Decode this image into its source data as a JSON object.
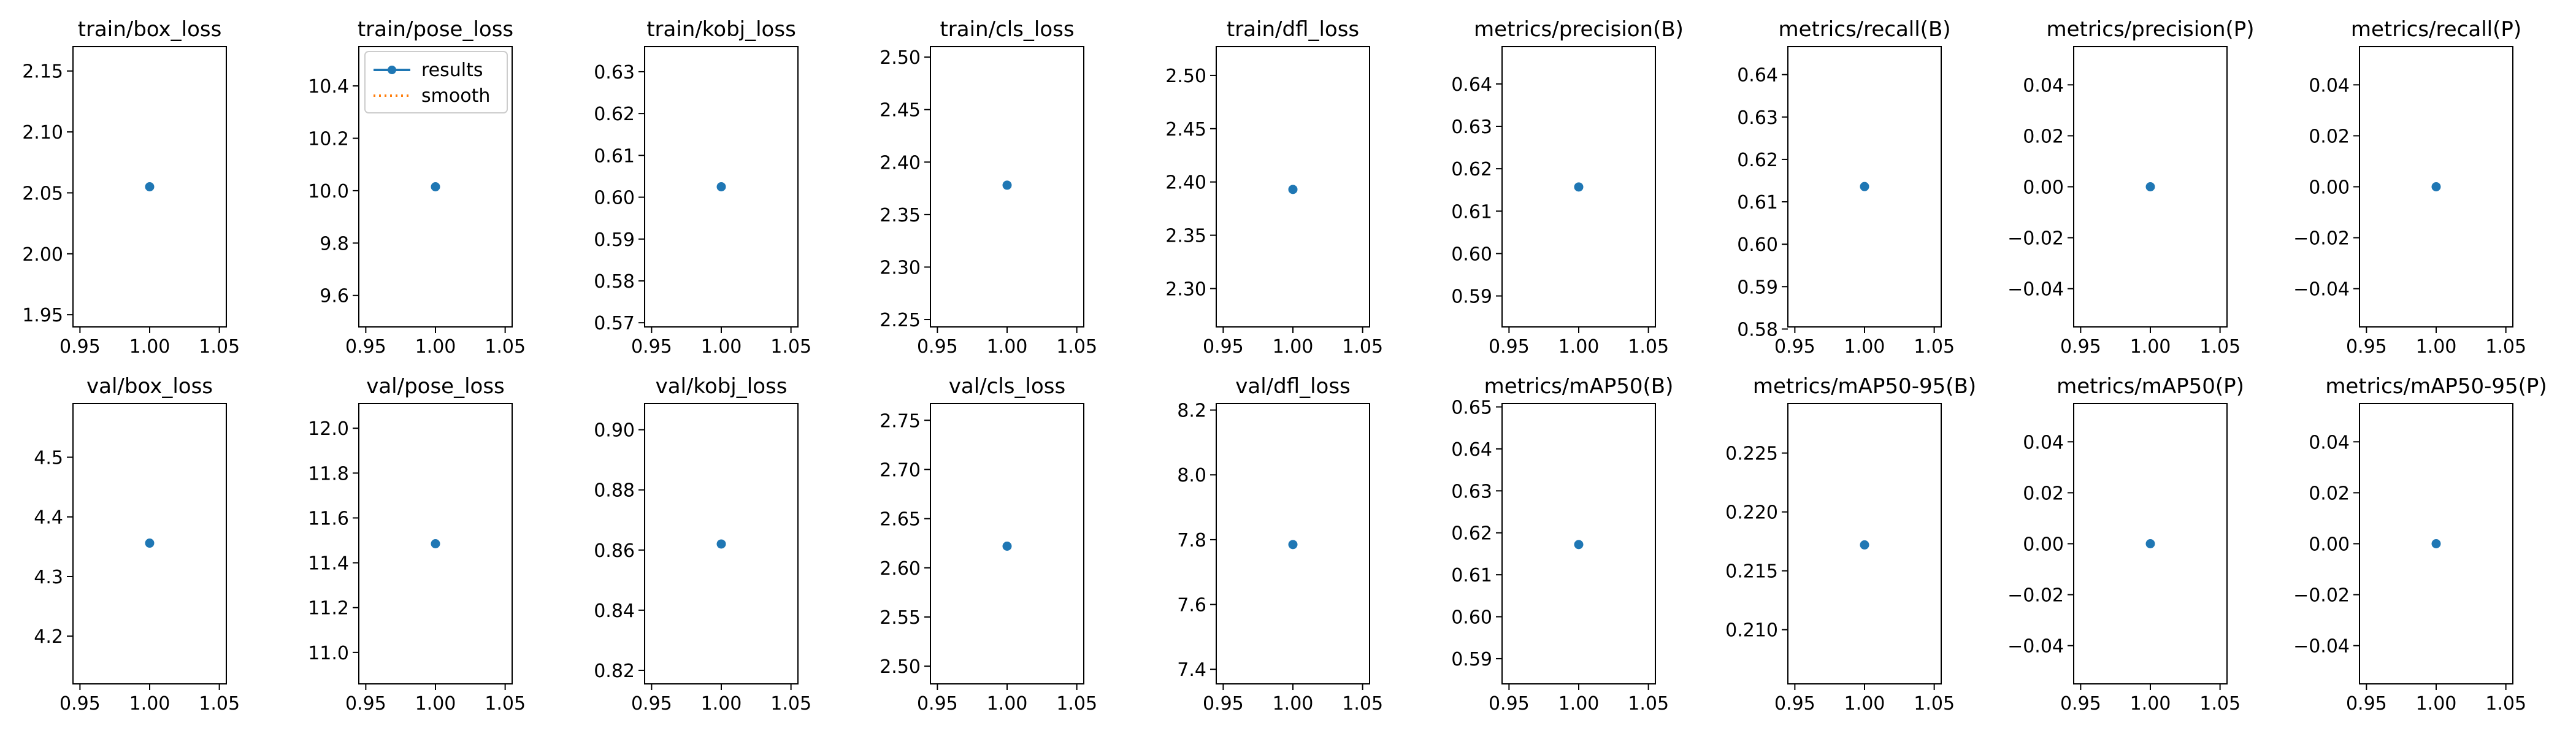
{
  "chart_data": [
    {
      "type": "scatter",
      "title": "train/box_loss",
      "x": [
        1.0
      ],
      "series": [
        {
          "name": "results",
          "values": [
            2.055
          ]
        }
      ],
      "xlim": [
        0.945,
        1.055
      ],
      "ylim": [
        1.94,
        2.17
      ],
      "xticks": [
        0.95,
        1.0,
        1.05
      ],
      "yticks": [
        1.95,
        2.0,
        2.05,
        2.1,
        2.15
      ],
      "xtick_labels": [
        "0.95",
        "1.00",
        "1.05"
      ],
      "ytick_labels": [
        "1.95",
        "2.00",
        "2.05",
        "2.10",
        "2.15"
      ],
      "grid": false
    },
    {
      "type": "scatter",
      "title": "train/pose_loss",
      "x": [
        1.0
      ],
      "series": [
        {
          "name": "results",
          "values": [
            10.015
          ]
        }
      ],
      "xlim": [
        0.945,
        1.055
      ],
      "ylim": [
        9.48,
        10.55
      ],
      "xticks": [
        0.95,
        1.0,
        1.05
      ],
      "yticks": [
        9.6,
        9.8,
        10.0,
        10.2,
        10.4
      ],
      "xtick_labels": [
        "0.95",
        "1.00",
        "1.05"
      ],
      "ytick_labels": [
        "9.6",
        "9.8",
        "10.0",
        "10.2",
        "10.4"
      ],
      "grid": false,
      "legend": {
        "placement": "upper-right",
        "entries": [
          "results",
          "smooth"
        ]
      }
    },
    {
      "type": "scatter",
      "title": "train/kobj_loss",
      "x": [
        1.0
      ],
      "series": [
        {
          "name": "results",
          "values": [
            0.6025
          ]
        }
      ],
      "xlim": [
        0.945,
        1.055
      ],
      "ylim": [
        0.569,
        0.636
      ],
      "xticks": [
        0.95,
        1.0,
        1.05
      ],
      "yticks": [
        0.57,
        0.58,
        0.59,
        0.6,
        0.61,
        0.62,
        0.63
      ],
      "xtick_labels": [
        "0.95",
        "1.00",
        "1.05"
      ],
      "ytick_labels": [
        "0.57",
        "0.58",
        "0.59",
        "0.60",
        "0.61",
        "0.62",
        "0.63"
      ],
      "grid": false
    },
    {
      "type": "scatter",
      "title": "train/cls_loss",
      "x": [
        1.0
      ],
      "series": [
        {
          "name": "results",
          "values": [
            2.378
          ]
        }
      ],
      "xlim": [
        0.945,
        1.055
      ],
      "ylim": [
        2.243,
        2.51
      ],
      "xticks": [
        0.95,
        1.0,
        1.05
      ],
      "yticks": [
        2.25,
        2.3,
        2.35,
        2.4,
        2.45,
        2.5
      ],
      "xtick_labels": [
        "0.95",
        "1.00",
        "1.05"
      ],
      "ytick_labels": [
        "2.25",
        "2.30",
        "2.35",
        "2.40",
        "2.45",
        "2.50"
      ],
      "grid": false
    },
    {
      "type": "scatter",
      "title": "train/dfl_loss",
      "x": [
        1.0
      ],
      "series": [
        {
          "name": "results",
          "values": [
            2.393
          ]
        }
      ],
      "xlim": [
        0.945,
        1.055
      ],
      "ylim": [
        2.264,
        2.527
      ],
      "xticks": [
        0.95,
        1.0,
        1.05
      ],
      "yticks": [
        2.3,
        2.35,
        2.4,
        2.45,
        2.5
      ],
      "xtick_labels": [
        "0.95",
        "1.00",
        "1.05"
      ],
      "ytick_labels": [
        "2.30",
        "2.35",
        "2.40",
        "2.45",
        "2.50"
      ],
      "grid": false
    },
    {
      "type": "scatter",
      "title": "metrics/precision(B)",
      "x": [
        1.0
      ],
      "series": [
        {
          "name": "results",
          "values": [
            0.6157
          ]
        }
      ],
      "xlim": [
        0.945,
        1.055
      ],
      "ylim": [
        0.5827,
        0.6488
      ],
      "xticks": [
        0.95,
        1.0,
        1.05
      ],
      "yticks": [
        0.59,
        0.6,
        0.61,
        0.62,
        0.63,
        0.64
      ],
      "xtick_labels": [
        "0.95",
        "1.00",
        "1.05"
      ],
      "ytick_labels": [
        "0.59",
        "0.60",
        "0.61",
        "0.62",
        "0.63",
        "0.64"
      ],
      "grid": false
    },
    {
      "type": "scatter",
      "title": "metrics/recall(B)",
      "x": [
        1.0
      ],
      "series": [
        {
          "name": "results",
          "values": [
            0.6136
          ]
        }
      ],
      "xlim": [
        0.945,
        1.055
      ],
      "ylim": [
        0.5805,
        0.6466
      ],
      "xticks": [
        0.95,
        1.0,
        1.05
      ],
      "yticks": [
        0.58,
        0.59,
        0.6,
        0.61,
        0.62,
        0.63,
        0.64
      ],
      "xtick_labels": [
        "0.95",
        "1.00",
        "1.05"
      ],
      "ytick_labels": [
        "0.58",
        "0.59",
        "0.60",
        "0.61",
        "0.62",
        "0.63",
        "0.64"
      ],
      "grid": false
    },
    {
      "type": "scatter",
      "title": "metrics/precision(P)",
      "x": [
        1.0
      ],
      "series": [
        {
          "name": "results",
          "values": [
            0.0
          ]
        }
      ],
      "xlim": [
        0.945,
        1.055
      ],
      "ylim": [
        -0.055,
        0.055
      ],
      "xticks": [
        0.95,
        1.0,
        1.05
      ],
      "yticks": [
        -0.04,
        -0.02,
        0.0,
        0.02,
        0.04
      ],
      "xtick_labels": [
        "0.95",
        "1.00",
        "1.05"
      ],
      "ytick_labels": [
        "−0.04",
        "−0.02",
        "0.00",
        "0.02",
        "0.04"
      ],
      "grid": false
    },
    {
      "type": "scatter",
      "title": "metrics/recall(P)",
      "x": [
        1.0
      ],
      "series": [
        {
          "name": "results",
          "values": [
            0.0
          ]
        }
      ],
      "xlim": [
        0.945,
        1.055
      ],
      "ylim": [
        -0.055,
        0.055
      ],
      "xticks": [
        0.95,
        1.0,
        1.05
      ],
      "yticks": [
        -0.04,
        -0.02,
        0.0,
        0.02,
        0.04
      ],
      "xtick_labels": [
        "0.95",
        "1.00",
        "1.05"
      ],
      "ytick_labels": [
        "−0.04",
        "−0.02",
        "0.00",
        "0.02",
        "0.04"
      ],
      "grid": false
    },
    {
      "type": "scatter",
      "title": "val/box_loss",
      "x": [
        1.0
      ],
      "series": [
        {
          "name": "results",
          "values": [
            4.356
          ]
        }
      ],
      "xlim": [
        0.945,
        1.055
      ],
      "ylim": [
        4.12,
        4.59
      ],
      "xticks": [
        0.95,
        1.0,
        1.05
      ],
      "yticks": [
        4.2,
        4.3,
        4.4,
        4.5
      ],
      "xtick_labels": [
        "0.95",
        "1.00",
        "1.05"
      ],
      "ytick_labels": [
        "4.2",
        "4.3",
        "4.4",
        "4.5"
      ],
      "grid": false
    },
    {
      "type": "scatter",
      "title": "val/pose_loss",
      "x": [
        1.0
      ],
      "series": [
        {
          "name": "results",
          "values": [
            11.485
          ]
        }
      ],
      "xlim": [
        0.945,
        1.055
      ],
      "ylim": [
        10.86,
        12.11
      ],
      "xticks": [
        0.95,
        1.0,
        1.05
      ],
      "yticks": [
        11.0,
        11.2,
        11.4,
        11.6,
        11.8,
        12.0
      ],
      "xtick_labels": [
        "0.95",
        "1.00",
        "1.05"
      ],
      "ytick_labels": [
        "11.0",
        "11.2",
        "11.4",
        "11.6",
        "11.8",
        "12.0"
      ],
      "grid": false
    },
    {
      "type": "scatter",
      "title": "val/kobj_loss",
      "x": [
        1.0
      ],
      "series": [
        {
          "name": "results",
          "values": [
            0.862
          ]
        }
      ],
      "xlim": [
        0.945,
        1.055
      ],
      "ylim": [
        0.8155,
        0.9087
      ],
      "xticks": [
        0.95,
        1.0,
        1.05
      ],
      "yticks": [
        0.82,
        0.84,
        0.86,
        0.88,
        0.9
      ],
      "xtick_labels": [
        "0.95",
        "1.00",
        "1.05"
      ],
      "ytick_labels": [
        "0.82",
        "0.84",
        "0.86",
        "0.88",
        "0.90"
      ],
      "grid": false
    },
    {
      "type": "scatter",
      "title": "val/cls_loss",
      "x": [
        1.0
      ],
      "series": [
        {
          "name": "results",
          "values": [
            2.622
          ]
        }
      ],
      "xlim": [
        0.945,
        1.055
      ],
      "ylim": [
        2.482,
        2.767
      ],
      "xticks": [
        0.95,
        1.0,
        1.05
      ],
      "yticks": [
        2.5,
        2.55,
        2.6,
        2.65,
        2.7,
        2.75
      ],
      "xtick_labels": [
        "0.95",
        "1.00",
        "1.05"
      ],
      "ytick_labels": [
        "2.50",
        "2.55",
        "2.60",
        "2.65",
        "2.70",
        "2.75"
      ],
      "grid": false
    },
    {
      "type": "scatter",
      "title": "val/dfl_loss",
      "x": [
        1.0
      ],
      "series": [
        {
          "name": "results",
          "values": [
            7.785
          ]
        }
      ],
      "xlim": [
        0.945,
        1.055
      ],
      "ylim": [
        7.355,
        8.22
      ],
      "xticks": [
        0.95,
        1.0,
        1.05
      ],
      "yticks": [
        7.4,
        7.6,
        7.8,
        8.0,
        8.2
      ],
      "xtick_labels": [
        "0.95",
        "1.00",
        "1.05"
      ],
      "ytick_labels": [
        "7.4",
        "7.6",
        "7.8",
        "8.0",
        "8.2"
      ],
      "grid": false
    },
    {
      "type": "scatter",
      "title": "metrics/mAP50(B)",
      "x": [
        1.0
      ],
      "series": [
        {
          "name": "results",
          "values": [
            0.6172
          ]
        }
      ],
      "xlim": [
        0.945,
        1.055
      ],
      "ylim": [
        0.584,
        0.6508
      ],
      "xticks": [
        0.95,
        1.0,
        1.05
      ],
      "yticks": [
        0.59,
        0.6,
        0.61,
        0.62,
        0.63,
        0.64,
        0.65
      ],
      "xtick_labels": [
        "0.95",
        "1.00",
        "1.05"
      ],
      "ytick_labels": [
        "0.59",
        "0.60",
        "0.61",
        "0.62",
        "0.63",
        "0.64",
        "0.65"
      ],
      "grid": false
    },
    {
      "type": "scatter",
      "title": "metrics/mAP50-95(B)",
      "x": [
        1.0
      ],
      "series": [
        {
          "name": "results",
          "values": [
            0.2172
          ]
        }
      ],
      "xlim": [
        0.945,
        1.055
      ],
      "ylim": [
        0.2054,
        0.2292
      ],
      "xticks": [
        0.95,
        1.0,
        1.05
      ],
      "yticks": [
        0.21,
        0.215,
        0.22,
        0.225
      ],
      "xtick_labels": [
        "0.95",
        "1.00",
        "1.05"
      ],
      "ytick_labels": [
        "0.210",
        "0.215",
        "0.220",
        "0.225"
      ],
      "grid": false
    },
    {
      "type": "scatter",
      "title": "metrics/mAP50(P)",
      "x": [
        1.0
      ],
      "series": [
        {
          "name": "results",
          "values": [
            0.0
          ]
        }
      ],
      "xlim": [
        0.945,
        1.055
      ],
      "ylim": [
        -0.055,
        0.055
      ],
      "xticks": [
        0.95,
        1.0,
        1.05
      ],
      "yticks": [
        -0.04,
        -0.02,
        0.0,
        0.02,
        0.04
      ],
      "xtick_labels": [
        "0.95",
        "1.00",
        "1.05"
      ],
      "ytick_labels": [
        "−0.04",
        "−0.02",
        "0.00",
        "0.02",
        "0.04"
      ],
      "grid": false
    },
    {
      "type": "scatter",
      "title": "metrics/mAP50-95(P)",
      "x": [
        1.0
      ],
      "series": [
        {
          "name": "results",
          "values": [
            0.0
          ]
        }
      ],
      "xlim": [
        0.945,
        1.055
      ],
      "ylim": [
        -0.055,
        0.055
      ],
      "xticks": [
        0.95,
        1.0,
        1.05
      ],
      "yticks": [
        -0.04,
        -0.02,
        0.0,
        0.02,
        0.04
      ],
      "xtick_labels": [
        "0.95",
        "1.00",
        "1.05"
      ],
      "ytick_labels": [
        "−0.04",
        "−0.02",
        "0.00",
        "0.02",
        "0.04"
      ],
      "grid": false
    }
  ],
  "colors": {
    "results": "#1f77b4",
    "smooth": "#ff7f0e",
    "axes": "#000000",
    "background": "#ffffff"
  }
}
